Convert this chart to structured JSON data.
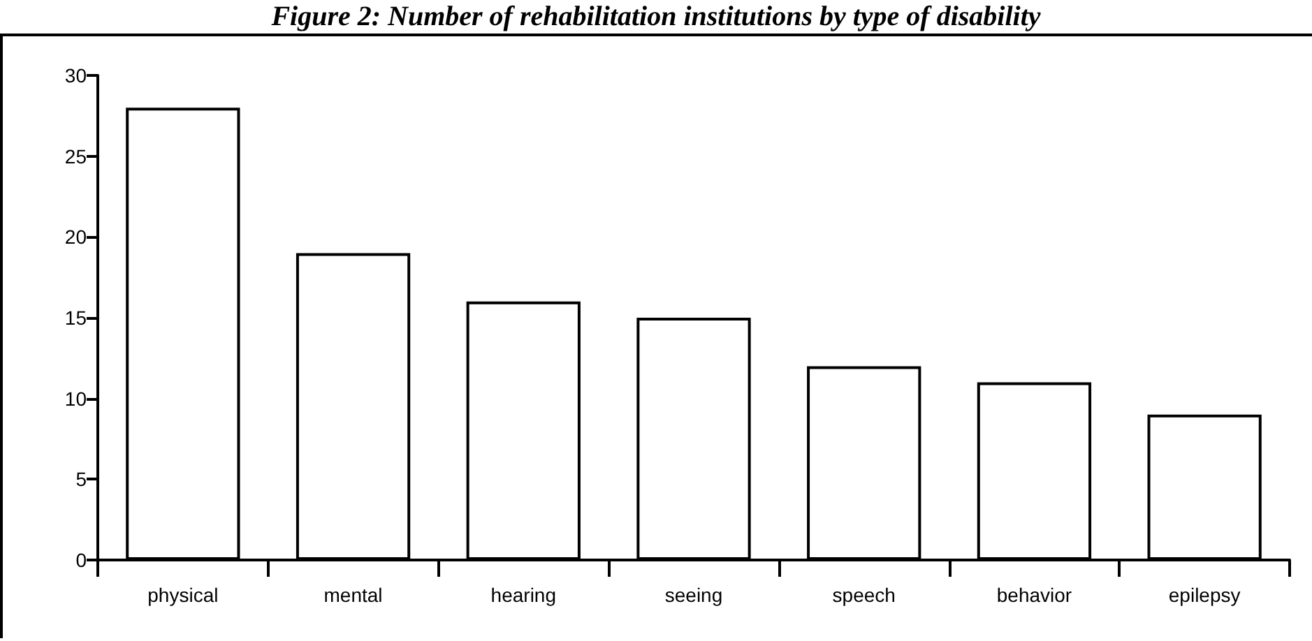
{
  "chart_data": {
    "type": "bar",
    "title": "Figure 2: Number of rehabilitation institutions by type of disability",
    "categories": [
      "physical",
      "mental",
      "hearing",
      "seeing",
      "speech",
      "behavior",
      "epilepsy"
    ],
    "values": [
      28,
      19,
      16,
      15,
      12,
      11,
      9
    ],
    "color": "#ffffff",
    "ylim": [
      0,
      30
    ],
    "yticks": [
      0,
      5,
      10,
      15,
      20,
      25,
      30
    ],
    "grid": false
  }
}
